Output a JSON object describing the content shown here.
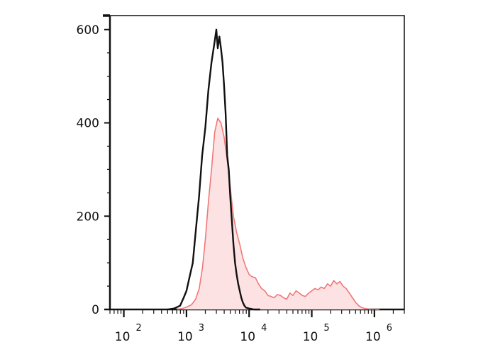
{
  "chart_data": {
    "type": "area",
    "title": "",
    "xlabel": "",
    "ylabel": "",
    "x_scale": "log",
    "xlim": [
      60,
      3000000
    ],
    "ylim": [
      0,
      630
    ],
    "x_ticks": [
      {
        "value": 100,
        "base": "10",
        "exp": "2"
      },
      {
        "value": 1000,
        "base": "10",
        "exp": "3"
      },
      {
        "value": 10000,
        "base": "10",
        "exp": "4"
      },
      {
        "value": 100000,
        "base": "10",
        "exp": "5"
      },
      {
        "value": 1000000,
        "base": "10",
        "exp": "6"
      }
    ],
    "y_ticks": [
      0,
      200,
      400,
      600
    ],
    "grid": false,
    "legend": "none",
    "series": [
      {
        "color": "#111111",
        "fill": "none",
        "x": [
          500,
          630,
          790,
          900,
          1000,
          1120,
          1260,
          1410,
          1580,
          1780,
          2000,
          2240,
          2510,
          2820,
          3000,
          3160,
          3350,
          3550,
          3760,
          3980,
          4220,
          4470,
          4730,
          5010,
          5310,
          5620,
          5960,
          6310,
          6680,
          7080,
          7500,
          7940,
          8410,
          8910,
          10000,
          12000,
          15000
        ],
        "values": [
          0,
          2,
          8,
          25,
          40,
          70,
          100,
          170,
          240,
          330,
          390,
          470,
          530,
          575,
          600,
          560,
          585,
          560,
          530,
          480,
          420,
          330,
          300,
          240,
          190,
          140,
          100,
          75,
          55,
          40,
          25,
          15,
          8,
          4,
          2,
          0,
          0
        ]
      },
      {
        "color": "#f07878",
        "fill": "#fde2e4",
        "x": [
          700,
          850,
          1000,
          1200,
          1400,
          1600,
          1800,
          2000,
          2240,
          2510,
          2820,
          3160,
          3550,
          3980,
          4470,
          5010,
          5620,
          6310,
          7080,
          7940,
          8910,
          10000,
          11200,
          12600,
          14100,
          15800,
          17800,
          20000,
          22400,
          25100,
          28200,
          31600,
          35500,
          39800,
          44700,
          50100,
          56200,
          63100,
          70800,
          79400,
          89100,
          100000,
          112000,
          126000,
          141000,
          158000,
          178000,
          200000,
          224000,
          251000,
          282000,
          316000,
          355000,
          398000,
          447000,
          501000,
          562000,
          631000,
          708000,
          794000,
          891000,
          1000000,
          1200000
        ],
        "values": [
          0,
          2,
          5,
          10,
          22,
          45,
          90,
          150,
          230,
          300,
          380,
          410,
          400,
          370,
          320,
          260,
          200,
          165,
          140,
          110,
          90,
          75,
          70,
          68,
          55,
          45,
          40,
          30,
          28,
          25,
          32,
          30,
          25,
          22,
          35,
          30,
          40,
          35,
          30,
          28,
          35,
          40,
          45,
          42,
          48,
          45,
          55,
          50,
          62,
          55,
          60,
          50,
          45,
          35,
          25,
          15,
          8,
          4,
          2,
          1,
          0,
          0,
          0
        ]
      }
    ]
  }
}
